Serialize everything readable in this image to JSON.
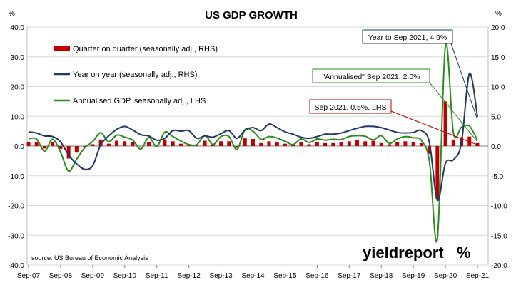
{
  "chart_data": {
    "type": "line",
    "title": "US GDP GROWTH",
    "ylabel_left": "%",
    "ylabel_right": "%",
    "ylim_left": [
      -40,
      40
    ],
    "ylim_right": [
      -20,
      20
    ],
    "yticks_left": [
      "40.0",
      "30.0",
      "20.0",
      "10.0",
      "0.0",
      "-10.0",
      "-20.0",
      "-30.0",
      "-40.0"
    ],
    "yticks_right": [
      "20.0",
      "15.0",
      "10.0",
      "5.0",
      "0.0",
      "-5.0",
      "-10.0",
      "-15.0",
      "-20.0"
    ],
    "x_tick_labels": [
      "Sep-07",
      "Sep-08",
      "Sep-09",
      "Sep-10",
      "Sep-11",
      "Sep-12",
      "Sep-13",
      "Sep-14",
      "Sep-15",
      "Sep-16",
      "Sep-17",
      "Sep-18",
      "Sep-19",
      "Sep-20",
      "Sep-21"
    ],
    "quarters": [
      "Sep-07",
      "Dec-07",
      "Mar-08",
      "Jun-08",
      "Sep-08",
      "Dec-08",
      "Mar-09",
      "Jun-09",
      "Sep-09",
      "Dec-09",
      "Mar-10",
      "Jun-10",
      "Sep-10",
      "Dec-10",
      "Mar-11",
      "Jun-11",
      "Sep-11",
      "Dec-11",
      "Mar-12",
      "Jun-12",
      "Sep-12",
      "Dec-12",
      "Mar-13",
      "Jun-13",
      "Sep-13",
      "Dec-13",
      "Mar-14",
      "Jun-14",
      "Sep-14",
      "Dec-14",
      "Mar-15",
      "Jun-15",
      "Sep-15",
      "Dec-15",
      "Mar-16",
      "Jun-16",
      "Sep-16",
      "Dec-16",
      "Mar-17",
      "Jun-17",
      "Sep-17",
      "Dec-17",
      "Mar-18",
      "Jun-18",
      "Sep-18",
      "Dec-18",
      "Mar-19",
      "Jun-19",
      "Sep-19",
      "Dec-19",
      "Mar-20",
      "Jun-20",
      "Sep-20",
      "Dec-20",
      "Mar-21",
      "Jun-21",
      "Sep-21"
    ],
    "series": [
      {
        "name": "Quarter on quarter (seasonally adj., RHS)",
        "type": "bar",
        "axis": "right",
        "color": "#c00000",
        "values": [
          0.6,
          0.6,
          -0.4,
          0.6,
          -0.5,
          -2.1,
          -1.1,
          -0.2,
          0.3,
          1.1,
          0.4,
          0.9,
          0.8,
          0.6,
          0.0,
          0.7,
          0.2,
          1.1,
          0.8,
          0.4,
          0.1,
          0.1,
          0.9,
          0.3,
          0.8,
          0.8,
          -0.3,
          1.3,
          1.2,
          0.5,
          0.8,
          0.6,
          0.4,
          0.2,
          0.6,
          0.3,
          0.6,
          0.5,
          0.5,
          0.6,
          0.8,
          1.0,
          0.8,
          0.9,
          0.5,
          0.3,
          0.6,
          0.8,
          0.7,
          0.5,
          -1.3,
          -8.9,
          7.5,
          1.1,
          1.5,
          1.6,
          0.5
        ]
      },
      {
        "name": "Year on year (seasonally adj., RHS)",
        "type": "line",
        "axis": "right",
        "color": "#1f3864",
        "values": [
          2.4,
          2.2,
          1.7,
          1.6,
          0.7,
          -1.5,
          -3.0,
          -3.9,
          -3.3,
          0.2,
          1.7,
          2.8,
          3.3,
          2.7,
          1.9,
          1.7,
          1.0,
          1.3,
          2.6,
          2.5,
          2.6,
          1.3,
          1.7,
          1.5,
          2.1,
          2.6,
          1.3,
          2.7,
          3.1,
          2.6,
          3.7,
          3.1,
          2.4,
          2.0,
          1.5,
          1.3,
          1.6,
          2.0,
          2.0,
          2.2,
          2.6,
          3.0,
          3.3,
          3.3,
          3.1,
          2.7,
          2.3,
          2.2,
          2.3,
          2.6,
          0.6,
          -9.1,
          -2.9,
          -2.3,
          0.5,
          12.2,
          4.9
        ]
      },
      {
        "name": "Annualised GDP, seasonally adj., LHS",
        "type": "line",
        "axis": "left",
        "color": "#2e8b1e",
        "values": [
          2.5,
          2.4,
          -1.7,
          2.3,
          -2.1,
          -8.4,
          -4.4,
          -0.6,
          1.5,
          4.5,
          1.5,
          3.7,
          3.0,
          2.0,
          -1.0,
          2.9,
          -0.1,
          4.7,
          3.2,
          1.7,
          0.5,
          0.5,
          3.6,
          0.5,
          3.2,
          3.2,
          -1.1,
          5.5,
          5.0,
          2.3,
          3.2,
          2.7,
          1.6,
          0.5,
          2.4,
          1.2,
          2.4,
          2.0,
          2.3,
          2.2,
          3.2,
          3.5,
          3.3,
          2.1,
          3.5,
          0.9,
          2.4,
          3.2,
          2.8,
          1.9,
          -5.1,
          -31.2,
          33.8,
          4.5,
          6.3,
          6.7,
          2.0
        ]
      }
    ],
    "annotations": [
      {
        "text": "Year to Sep 2021, 4.9%",
        "color": "#1f3864"
      },
      {
        "text": "\"Annualised\" Sep 2021, 2.0%",
        "color": "#2e8b1e"
      },
      {
        "text": "Sep 2021, 0.5%, LHS",
        "color": "#c00000"
      }
    ],
    "source": "source: US Bureau of Economic Analysis",
    "logo": {
      "text_main": "yieldreport",
      "text_symbol": "%"
    }
  }
}
